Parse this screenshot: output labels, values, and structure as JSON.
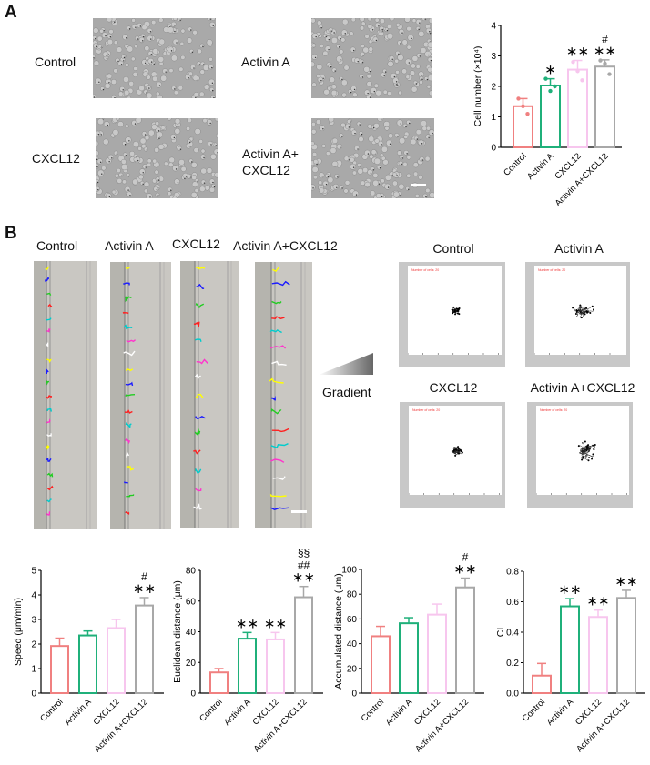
{
  "panel_a": {
    "letter": "A",
    "image_labels": [
      "Control",
      "Activin A",
      "CXCL12",
      "Activin A+",
      "CXCL12"
    ],
    "labels": {
      "control": "Control",
      "activin": "Activin A",
      "cxcl12": "CXCL12",
      "combo_line1": "Activin A+",
      "combo_line2": "CXCL12"
    }
  },
  "panel_b": {
    "letter": "B",
    "strip_labels": [
      "Control",
      "Activin A",
      "CXCL12",
      "Activin A+CXCL12"
    ],
    "gradient_label": "Gradient",
    "track_plot_titles": [
      "Control",
      "Activin A",
      "CXCL12",
      "Activin A+CXCL12"
    ],
    "track_plot_caption": "Number of cells: 20"
  },
  "colors": {
    "control": "#f08080",
    "activin": "#1fb07a",
    "cxcl12": "#f7c6ee",
    "combo": "#a8a8a8"
  },
  "chart_data": [
    {
      "type": "bar",
      "title": "",
      "categories": [
        "Control",
        "Activin A",
        "CXCL12",
        "Activin A+CXCL12"
      ],
      "values": [
        1.35,
        2.03,
        2.55,
        2.65
      ],
      "errors": [
        0.25,
        0.22,
        0.3,
        0.22
      ],
      "points": [
        [
          1.6,
          1.35,
          1.1
        ],
        [
          2.25,
          1.85,
          2.0
        ],
        [
          2.8,
          2.5,
          2.2
        ],
        [
          2.85,
          2.75,
          2.4
        ]
      ],
      "annotations": [
        "",
        "*",
        "**",
        "#\n**"
      ],
      "xlabel": "",
      "ylabel": "Cell number (×10⁴)",
      "yticks": [
        0,
        1,
        2,
        3,
        4
      ],
      "ylim": [
        0,
        4
      ]
    },
    {
      "type": "bar",
      "categories": [
        "Control",
        "Activin A",
        "CXCL12",
        "Activin A+CXCL12"
      ],
      "values": [
        1.92,
        2.35,
        2.65,
        3.57
      ],
      "errors": [
        0.32,
        0.18,
        0.35,
        0.32
      ],
      "annotations": [
        "",
        "",
        "",
        "#\n**"
      ],
      "ylabel": "Speed (μm/min)",
      "yticks": [
        0,
        1,
        2,
        3,
        4,
        5
      ],
      "ylim": [
        0,
        5
      ]
    },
    {
      "type": "bar",
      "categories": [
        "Control",
        "Activin A",
        "CXCL12",
        "Activin A+CXCL12"
      ],
      "values": [
        13.5,
        35.5,
        35,
        62.5
      ],
      "errors": [
        2.5,
        4,
        4.5,
        7
      ],
      "annotations": [
        "",
        "**",
        "**",
        "§§\n##\n**"
      ],
      "ylabel": "Euclidean distance (μm)",
      "yticks": [
        0,
        20,
        40,
        60,
        80
      ],
      "ylim": [
        0,
        80
      ]
    },
    {
      "type": "bar",
      "categories": [
        "Control",
        "Activin A",
        "CXCL12",
        "Activin A+CXCL12"
      ],
      "values": [
        46,
        56.5,
        63.5,
        85.5
      ],
      "errors": [
        8,
        4.5,
        8.5,
        7.5
      ],
      "annotations": [
        "",
        "",
        "",
        "#\n**"
      ],
      "ylabel": "Accumulated distance (μm)",
      "yticks": [
        0,
        20,
        40,
        60,
        80,
        100
      ],
      "ylim": [
        0,
        100
      ]
    },
    {
      "type": "bar",
      "categories": [
        "Control",
        "Activin A",
        "CXCL12",
        "Activin A+CXCL12"
      ],
      "values": [
        0.115,
        0.57,
        0.5,
        0.625
      ],
      "errors": [
        0.08,
        0.05,
        0.045,
        0.05
      ],
      "annotations": [
        "",
        "**",
        "**",
        "**"
      ],
      "ylabel": "CI",
      "yticks": [
        0.0,
        0.2,
        0.4,
        0.6,
        0.8
      ],
      "ylim": [
        0,
        0.8
      ]
    }
  ]
}
